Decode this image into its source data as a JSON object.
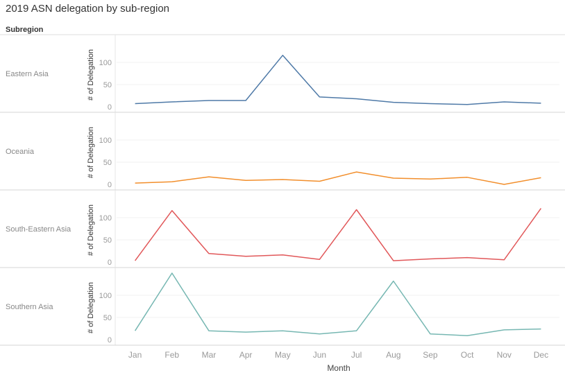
{
  "chart_data": {
    "type": "line",
    "title": "2019 ASN delegation by sub-region",
    "row_header": "Subregion",
    "xlabel": "Month",
    "ylabel": "# of Delegation",
    "categories": [
      "Jan",
      "Feb",
      "Mar",
      "Apr",
      "May",
      "Jun",
      "Jul",
      "Aug",
      "Sep",
      "Oct",
      "Nov",
      "Dec"
    ],
    "ylim": [
      0,
      130
    ],
    "yticks": [
      0,
      50,
      100
    ],
    "grid": true,
    "legend": "none",
    "series": [
      {
        "name": "Eastern Asia",
        "color": "#4e79a7",
        "values": [
          7,
          11,
          14,
          14,
          116,
          22,
          18,
          10,
          7,
          5,
          11,
          8
        ]
      },
      {
        "name": "Oceania",
        "color": "#f28e2b",
        "values": [
          3,
          6,
          17,
          9,
          11,
          7,
          28,
          14,
          12,
          16,
          0,
          15
        ]
      },
      {
        "name": "South-Eastern Asia",
        "color": "#e15759",
        "values": [
          3,
          116,
          19,
          13,
          16,
          6,
          118,
          3,
          7,
          10,
          5,
          121
        ]
      },
      {
        "name": "Southern Asia",
        "color": "#76b7b2",
        "values": [
          20,
          150,
          20,
          17,
          20,
          13,
          20,
          132,
          13,
          9,
          22,
          24
        ]
      }
    ]
  }
}
